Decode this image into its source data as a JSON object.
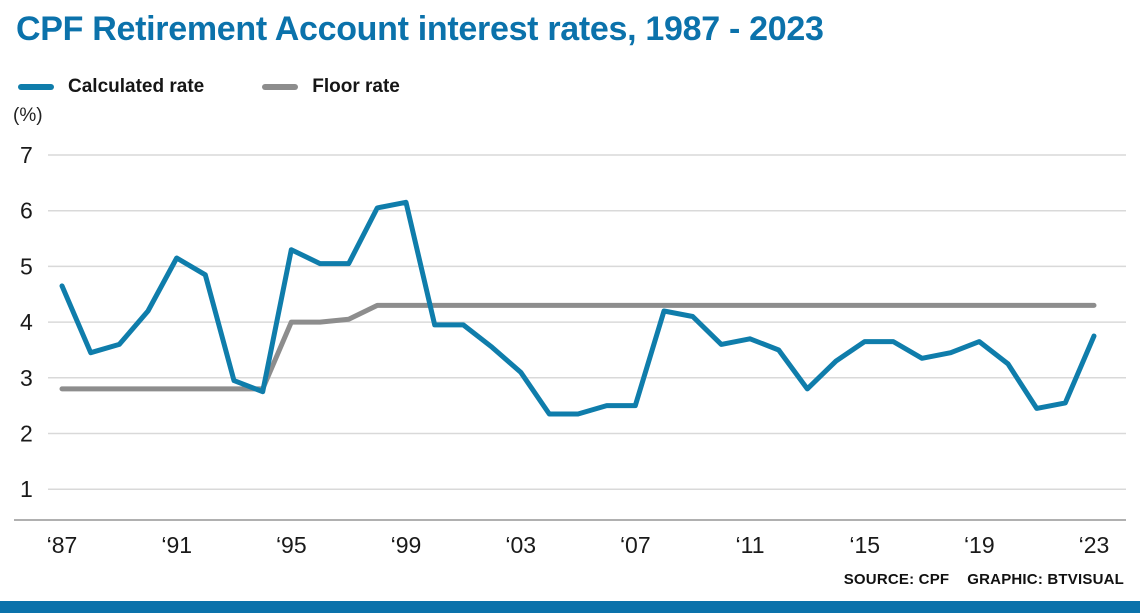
{
  "title": "CPF Retirement Account interest rates, 1987 - 2023",
  "unit_label": "(%)",
  "legend": {
    "items": [
      {
        "label": "Calculated rate",
        "color": "#0f7dab"
      },
      {
        "label": "Floor rate",
        "color": "#8d8d8d"
      }
    ]
  },
  "footer": {
    "source": "SOURCE: CPF",
    "credit": "GRAPHIC: BTVISUAL"
  },
  "colors": {
    "accent": "#0b72ab",
    "grid": "#d9d9d9",
    "axis": "#b0b0b0",
    "text": "#1a1a1a"
  },
  "chart_data": {
    "type": "line",
    "title": "CPF Retirement Account interest rates, 1987 - 2023",
    "xlabel": "",
    "ylabel": "(%)",
    "grid": true,
    "legend_position": "top-left",
    "ylim": [
      0.45,
      7.3
    ],
    "yticks": [
      7,
      6,
      5,
      4,
      3,
      2,
      1
    ],
    "xticks": [
      {
        "year": 1987,
        "label": "‘87"
      },
      {
        "year": 1991,
        "label": "‘91"
      },
      {
        "year": 1995,
        "label": "‘95"
      },
      {
        "year": 1999,
        "label": "‘99"
      },
      {
        "year": 2003,
        "label": "‘03"
      },
      {
        "year": 2007,
        "label": "‘07"
      },
      {
        "year": 2011,
        "label": "‘11"
      },
      {
        "year": 2015,
        "label": "‘15"
      },
      {
        "year": 2019,
        "label": "‘19"
      },
      {
        "year": 2023,
        "label": "‘23"
      }
    ],
    "x": [
      1987,
      1988,
      1989,
      1990,
      1991,
      1992,
      1993,
      1994,
      1995,
      1996,
      1997,
      1998,
      1999,
      2000,
      2001,
      2002,
      2003,
      2004,
      2005,
      2006,
      2007,
      2008,
      2009,
      2010,
      2011,
      2012,
      2013,
      2014,
      2015,
      2016,
      2017,
      2018,
      2019,
      2020,
      2021,
      2022,
      2023
    ],
    "series": [
      {
        "name": "Calculated rate",
        "color": "#0f7dab",
        "values": [
          4.65,
          3.45,
          3.6,
          4.2,
          5.15,
          4.85,
          2.95,
          2.75,
          5.3,
          5.05,
          5.05,
          6.05,
          6.15,
          3.95,
          3.95,
          3.55,
          3.1,
          2.35,
          2.35,
          2.5,
          2.5,
          4.2,
          4.1,
          3.6,
          3.7,
          3.5,
          2.8,
          3.3,
          3.65,
          3.65,
          3.35,
          3.45,
          3.65,
          3.25,
          2.45,
          2.55,
          3.75
        ]
      },
      {
        "name": "Floor rate",
        "color": "#8d8d8d",
        "values": [
          2.8,
          2.8,
          2.8,
          2.8,
          2.8,
          2.8,
          2.8,
          2.8,
          4.0,
          4.0,
          4.05,
          4.3,
          4.3,
          4.3,
          4.3,
          4.3,
          4.3,
          4.3,
          4.3,
          4.3,
          4.3,
          4.3,
          4.3,
          4.3,
          4.3,
          4.3,
          4.3,
          4.3,
          4.3,
          4.3,
          4.3,
          4.3,
          4.3,
          4.3,
          4.3,
          4.3,
          4.3
        ]
      }
    ]
  }
}
